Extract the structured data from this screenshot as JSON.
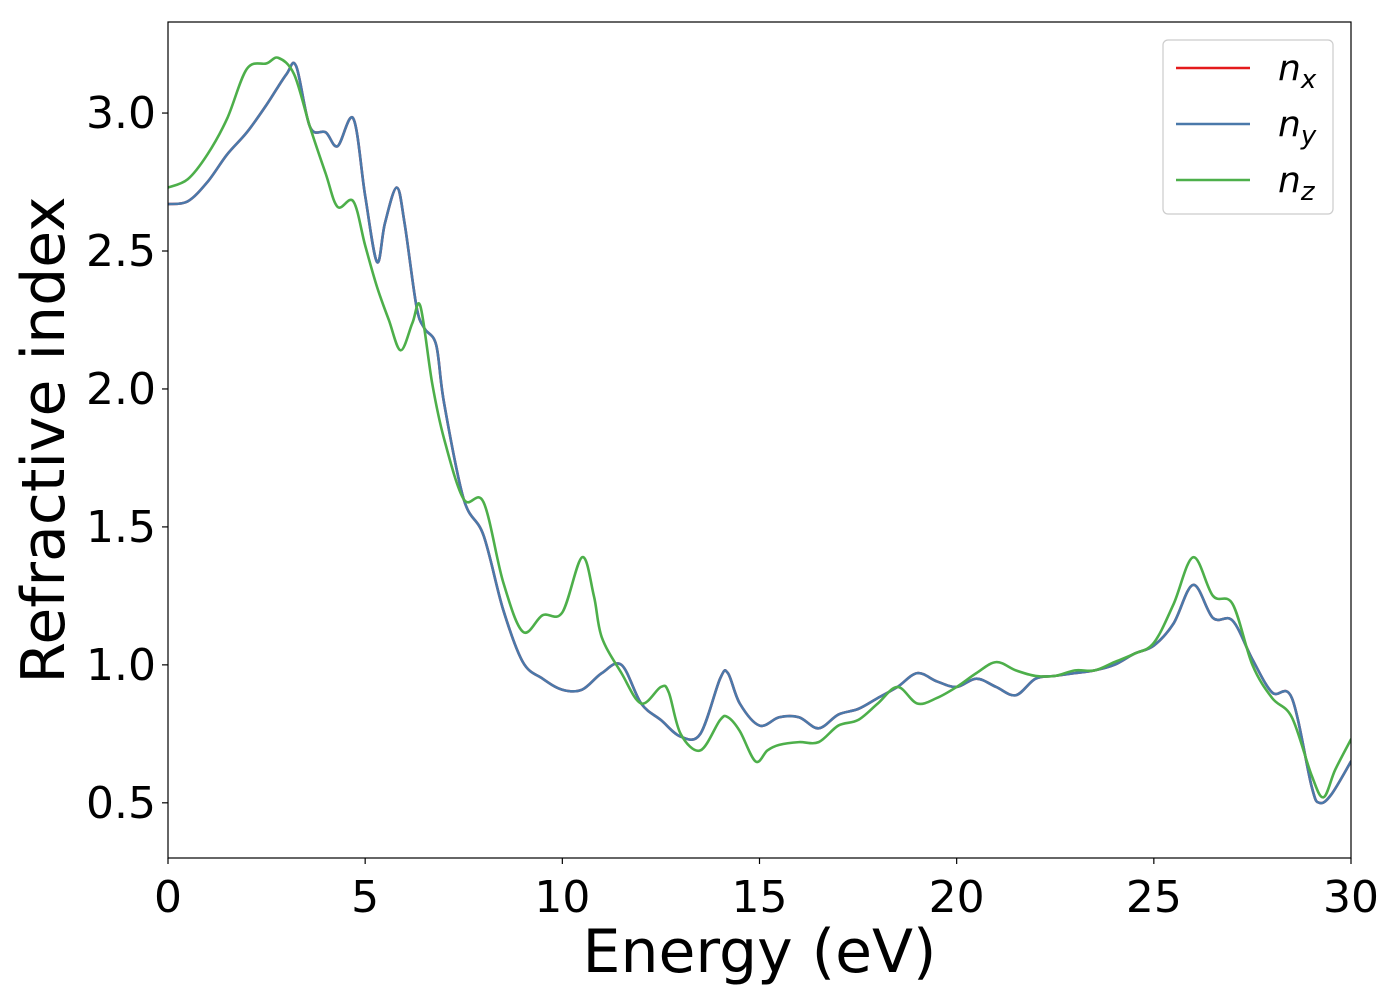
{
  "chart_data": {
    "type": "line",
    "xlabel": "Energy (eV)",
    "ylabel": "Refractive index",
    "xlim": [
      0,
      30
    ],
    "ylim": [
      0.3,
      3.33
    ],
    "x_ticks": [
      0,
      5,
      10,
      15,
      20,
      25,
      30
    ],
    "x_tick_labels": [
      "0",
      "5",
      "10",
      "15",
      "20",
      "25",
      "30"
    ],
    "y_ticks": [
      0.5,
      1.0,
      1.5,
      2.0,
      2.5,
      3.0
    ],
    "y_tick_labels": [
      "0.5",
      "1.0",
      "1.5",
      "2.0",
      "2.5",
      "3.0"
    ],
    "grid": false,
    "legend_position": "top-right",
    "series": [
      {
        "name": "n_x",
        "legend_base": "n",
        "legend_sub": "x",
        "color": "#e41a1c",
        "x": [
          0,
          0.5,
          1,
          1.5,
          2,
          2.5,
          3,
          3.25,
          3.6,
          4,
          4.3,
          4.7,
          5,
          5.3,
          5.5,
          5.8,
          6,
          6.3,
          6.5,
          6.8,
          7,
          7.5,
          8,
          8.5,
          9,
          9.5,
          10,
          10.5,
          11,
          11.5,
          12,
          12.5,
          13,
          13.5,
          14,
          14.2,
          14.5,
          15,
          15.5,
          16,
          16.5,
          17,
          17.5,
          18,
          18.5,
          19,
          19.5,
          20,
          20.5,
          21,
          21.5,
          22,
          22.5,
          23,
          23.5,
          24,
          24.5,
          25,
          25.5,
          26,
          26.5,
          27,
          27.5,
          28,
          28.5,
          29,
          29.2,
          29.5,
          30
        ],
        "y": [
          2.67,
          2.68,
          2.75,
          2.85,
          2.93,
          3.03,
          3.14,
          3.17,
          2.95,
          2.93,
          2.88,
          2.98,
          2.7,
          2.46,
          2.6,
          2.73,
          2.6,
          2.3,
          2.22,
          2.16,
          1.95,
          1.6,
          1.47,
          1.2,
          1.01,
          0.95,
          0.91,
          0.91,
          0.97,
          1.0,
          0.86,
          0.8,
          0.74,
          0.75,
          0.95,
          0.97,
          0.86,
          0.78,
          0.81,
          0.81,
          0.77,
          0.82,
          0.84,
          0.88,
          0.92,
          0.97,
          0.94,
          0.92,
          0.95,
          0.92,
          0.89,
          0.95,
          0.96,
          0.97,
          0.98,
          1.0,
          1.04,
          1.07,
          1.15,
          1.29,
          1.17,
          1.16,
          1.02,
          0.9,
          0.88,
          0.56,
          0.5,
          0.53,
          0.65
        ]
      },
      {
        "name": "n_y",
        "legend_base": "n",
        "legend_sub": "y",
        "color": "#4a79aa",
        "x": [
          0,
          0.5,
          1,
          1.5,
          2,
          2.5,
          3,
          3.25,
          3.6,
          4,
          4.3,
          4.7,
          5,
          5.3,
          5.5,
          5.8,
          6,
          6.3,
          6.5,
          6.8,
          7,
          7.5,
          8,
          8.5,
          9,
          9.5,
          10,
          10.5,
          11,
          11.5,
          12,
          12.5,
          13,
          13.5,
          14,
          14.2,
          14.5,
          15,
          15.5,
          16,
          16.5,
          17,
          17.5,
          18,
          18.5,
          19,
          19.5,
          20,
          20.5,
          21,
          21.5,
          22,
          22.5,
          23,
          23.5,
          24,
          24.5,
          25,
          25.5,
          26,
          26.5,
          27,
          27.5,
          28,
          28.5,
          29,
          29.2,
          29.5,
          30
        ],
        "y": [
          2.67,
          2.68,
          2.75,
          2.85,
          2.93,
          3.03,
          3.14,
          3.17,
          2.95,
          2.93,
          2.88,
          2.98,
          2.7,
          2.46,
          2.6,
          2.73,
          2.6,
          2.3,
          2.22,
          2.16,
          1.95,
          1.6,
          1.47,
          1.2,
          1.01,
          0.95,
          0.91,
          0.91,
          0.97,
          1.0,
          0.86,
          0.8,
          0.74,
          0.75,
          0.95,
          0.97,
          0.86,
          0.78,
          0.81,
          0.81,
          0.77,
          0.82,
          0.84,
          0.88,
          0.92,
          0.97,
          0.94,
          0.92,
          0.95,
          0.92,
          0.89,
          0.95,
          0.96,
          0.97,
          0.98,
          1.0,
          1.04,
          1.07,
          1.15,
          1.29,
          1.17,
          1.16,
          1.02,
          0.9,
          0.88,
          0.56,
          0.5,
          0.53,
          0.65
        ]
      },
      {
        "name": "n_z",
        "legend_base": "n",
        "legend_sub": "z",
        "color": "#4daf4a",
        "x": [
          0,
          0.5,
          1,
          1.5,
          2,
          2.5,
          2.8,
          3.2,
          3.6,
          4,
          4.3,
          4.7,
          5,
          5.3,
          5.6,
          5.9,
          6.2,
          6.4,
          6.7,
          7,
          7.5,
          8,
          8.5,
          9,
          9.5,
          10,
          10.5,
          10.8,
          11,
          11.5,
          12,
          12.5,
          12.7,
          13,
          13.5,
          14,
          14.2,
          14.5,
          14.9,
          15.2,
          15.5,
          16,
          16.5,
          17,
          17.5,
          18,
          18.5,
          19,
          19.5,
          20,
          20.5,
          21,
          21.5,
          22,
          22.5,
          23,
          23.5,
          24,
          24.5,
          25,
          25.5,
          26,
          26.5,
          27,
          27.5,
          28,
          28.5,
          29,
          29.3,
          29.6,
          30
        ],
        "y": [
          2.73,
          2.76,
          2.85,
          2.98,
          3.16,
          3.18,
          3.2,
          3.14,
          2.95,
          2.78,
          2.66,
          2.68,
          2.52,
          2.37,
          2.25,
          2.14,
          2.24,
          2.3,
          2.02,
          1.82,
          1.6,
          1.59,
          1.3,
          1.12,
          1.18,
          1.19,
          1.39,
          1.25,
          1.1,
          0.97,
          0.86,
          0.92,
          0.9,
          0.75,
          0.69,
          0.8,
          0.81,
          0.76,
          0.65,
          0.69,
          0.71,
          0.72,
          0.72,
          0.78,
          0.8,
          0.86,
          0.92,
          0.86,
          0.88,
          0.92,
          0.97,
          1.01,
          0.98,
          0.96,
          0.96,
          0.98,
          0.98,
          1.01,
          1.04,
          1.08,
          1.22,
          1.39,
          1.25,
          1.22,
          1.0,
          0.88,
          0.81,
          0.6,
          0.52,
          0.62,
          0.73
        ]
      }
    ]
  }
}
